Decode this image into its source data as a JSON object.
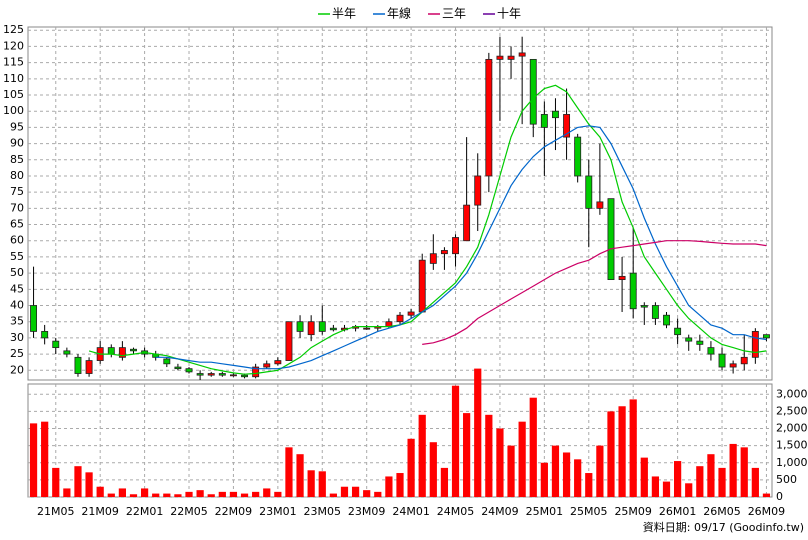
{
  "chart_data": {
    "type": "candlestick",
    "categories": [
      null,
      null,
      "21M05",
      null,
      null,
      null,
      "21M09",
      null,
      null,
      null,
      "22M01",
      null,
      null,
      null,
      "22M05",
      null,
      null,
      null,
      "22M09",
      null,
      null,
      null,
      "23M01",
      null,
      null,
      null,
      "23M05",
      null,
      null,
      null,
      "23M09",
      null,
      null,
      null,
      "24M01",
      null,
      null,
      null,
      "24M05",
      null,
      null,
      null,
      "24M09",
      null,
      null,
      null,
      "25M01",
      null,
      null,
      null,
      "25M05",
      null,
      null,
      null,
      "25M09",
      null,
      null,
      null,
      "26M01",
      null,
      null,
      null,
      "26M05",
      null,
      null,
      null,
      "26M09"
    ],
    "open": [
      40,
      32,
      29,
      26,
      24,
      19,
      23,
      27,
      24,
      26.5,
      26,
      25,
      23.5,
      21,
      20.5,
      19,
      18.5,
      19,
      18.5,
      18.5,
      18,
      21,
      22,
      23,
      35,
      31,
      35,
      33,
      32.5,
      33,
      33,
      33,
      33.5,
      35,
      37,
      38,
      53,
      56,
      56,
      60,
      71,
      80,
      116,
      116,
      117,
      116,
      99,
      100,
      92,
      92,
      80,
      70,
      73,
      48,
      50,
      40,
      40,
      37,
      33,
      30,
      29,
      27,
      25,
      21,
      22,
      24,
      31
    ],
    "high": [
      52,
      34,
      30,
      27,
      25,
      24,
      29,
      28,
      29,
      27,
      27,
      26,
      24,
      22,
      21,
      20,
      19.5,
      19.5,
      19,
      19,
      22,
      23,
      24,
      35,
      37,
      37,
      40,
      34,
      34,
      34,
      34,
      34,
      36,
      38,
      39,
      56,
      62,
      58,
      62,
      92,
      87,
      118,
      123,
      120,
      123,
      116,
      103,
      104,
      107,
      93,
      85,
      90,
      73,
      55,
      64,
      41,
      41,
      38,
      36,
      31,
      31,
      29,
      27,
      23,
      31,
      33,
      31
    ],
    "low": [
      30,
      28,
      25,
      24,
      18,
      18,
      22,
      24,
      23,
      25,
      24,
      23,
      21,
      20,
      19,
      17,
      18,
      18,
      18,
      17.5,
      17.5,
      20.5,
      21.5,
      23,
      30,
      29,
      31,
      32,
      32,
      32,
      32.5,
      32,
      33,
      34,
      36,
      38,
      51,
      51,
      52,
      60,
      63,
      75,
      97,
      110,
      96,
      92,
      80,
      88,
      85,
      78,
      58,
      68,
      48,
      38,
      36,
      34,
      34,
      33,
      28,
      26,
      26,
      23,
      20,
      19,
      20,
      22,
      29
    ],
    "close": [
      32,
      30,
      27,
      25,
      19,
      23,
      27,
      25,
      27,
      26,
      25,
      24,
      22,
      20.5,
      19.5,
      18.5,
      19,
      18.5,
      18.6,
      18,
      21,
      22,
      23,
      35,
      32,
      35,
      32,
      32.5,
      33,
      33.5,
      33,
      33.5,
      35,
      37,
      38,
      54,
      56,
      57,
      61,
      71,
      80,
      116,
      117,
      117,
      118,
      96,
      95,
      98,
      99,
      80,
      70,
      72,
      48,
      49,
      39,
      39.5,
      36,
      34,
      31,
      29,
      28,
      25,
      21,
      22,
      24,
      32,
      30
    ],
    "up_color": "#ff0000",
    "down_color": "#00cc00",
    "ylim": [
      17,
      126
    ],
    "yticks": [
      20,
      25,
      30,
      35,
      40,
      45,
      50,
      55,
      60,
      65,
      70,
      75,
      80,
      85,
      90,
      95,
      100,
      105,
      110,
      115,
      120,
      125
    ],
    "grid": true,
    "series": [
      {
        "name": "半年",
        "color": "#00cc00",
        "values": [
          null,
          null,
          null,
          null,
          null,
          26,
          25,
          25,
          24.5,
          25,
          25.5,
          25,
          24.5,
          23.5,
          22.5,
          21.5,
          20.5,
          19.8,
          19.2,
          18.8,
          19,
          19.5,
          20,
          22,
          24,
          27,
          29,
          31,
          32.5,
          33.5,
          33.5,
          33.5,
          33.5,
          34,
          35,
          38,
          41,
          44,
          47,
          52,
          58,
          68,
          80,
          92,
          100,
          104,
          107,
          108,
          106,
          101,
          96,
          92,
          85,
          72,
          64,
          55,
          50,
          45,
          40,
          36,
          33,
          30,
          28,
          27,
          26,
          25.5,
          26
        ]
      },
      {
        "name": "年線",
        "color": "#0066cc",
        "values": [
          null,
          null,
          null,
          null,
          null,
          null,
          null,
          null,
          null,
          null,
          null,
          24,
          24,
          23.5,
          23,
          22.5,
          22.5,
          22,
          21.5,
          21,
          20.5,
          20.5,
          20.5,
          21,
          22,
          23,
          24.5,
          26,
          27.5,
          29,
          30.5,
          32,
          33,
          34,
          36,
          38,
          40,
          43,
          46,
          50,
          56,
          63,
          70,
          77,
          82,
          86,
          89,
          91,
          93,
          95,
          95.5,
          95,
          90,
          83,
          76,
          67,
          59,
          52,
          46,
          40,
          37,
          34,
          33,
          31,
          31,
          30,
          29.5
        ]
      },
      {
        "name": "三年",
        "color": "#cc0066",
        "values": [
          null,
          null,
          null,
          null,
          null,
          null,
          null,
          null,
          null,
          null,
          null,
          null,
          null,
          null,
          null,
          null,
          null,
          null,
          null,
          null,
          null,
          null,
          null,
          null,
          null,
          null,
          null,
          null,
          null,
          null,
          null,
          null,
          null,
          null,
          null,
          28,
          28.5,
          29.5,
          31,
          33,
          36,
          38,
          40,
          42,
          44,
          46,
          48,
          50,
          51.5,
          53,
          54,
          56,
          57.5,
          58,
          58.5,
          59,
          59.5,
          60,
          60,
          60,
          59.8,
          59.5,
          59.2,
          59,
          59,
          59,
          58.5
        ]
      },
      {
        "name": "十年",
        "color": "#660099",
        "values": [
          null,
          null,
          null,
          null,
          null,
          null,
          null,
          null,
          null,
          null,
          null,
          null,
          null,
          null,
          null,
          null,
          null,
          null,
          null,
          null,
          null,
          null,
          null,
          null,
          null,
          null,
          null,
          null,
          null,
          null,
          null,
          null,
          null,
          null,
          null,
          null,
          null,
          null,
          null,
          null,
          null,
          null,
          null,
          null,
          null,
          null,
          null,
          null,
          null,
          null,
          null,
          null,
          null,
          null,
          null,
          null,
          null,
          null,
          null,
          null,
          null,
          null,
          null,
          null,
          null,
          null,
          null
        ]
      }
    ],
    "volume": {
      "color": "#ff0000",
      "ylim": [
        0,
        3300
      ],
      "yticks": [
        0,
        500,
        {
          "value": 1000,
          "label": "1,000"
        },
        {
          "value": 1500,
          "label": "1,500"
        },
        {
          "value": 2000,
          "label": "2,000"
        },
        {
          "value": 2500,
          "label": "2,500"
        },
        {
          "value": 3000,
          "label": "3,000"
        }
      ],
      "values": [
        2150,
        2200,
        850,
        250,
        900,
        720,
        300,
        100,
        250,
        80,
        250,
        100,
        100,
        80,
        150,
        200,
        80,
        150,
        150,
        100,
        150,
        250,
        150,
        1450,
        1250,
        780,
        750,
        100,
        300,
        300,
        200,
        150,
        600,
        700,
        1700,
        2400,
        1600,
        850,
        3250,
        2450,
        3750,
        2400,
        2000,
        1500,
        2200,
        2900,
        1000,
        1500,
        1300,
        1100,
        700,
        1500,
        2500,
        2650,
        2850,
        1150,
        600,
        450,
        1050,
        400,
        900,
        1250,
        850,
        1550,
        1450,
        850,
        100
      ]
    },
    "source": "資料日期: 09/17 (Goodinfo.tw)"
  }
}
